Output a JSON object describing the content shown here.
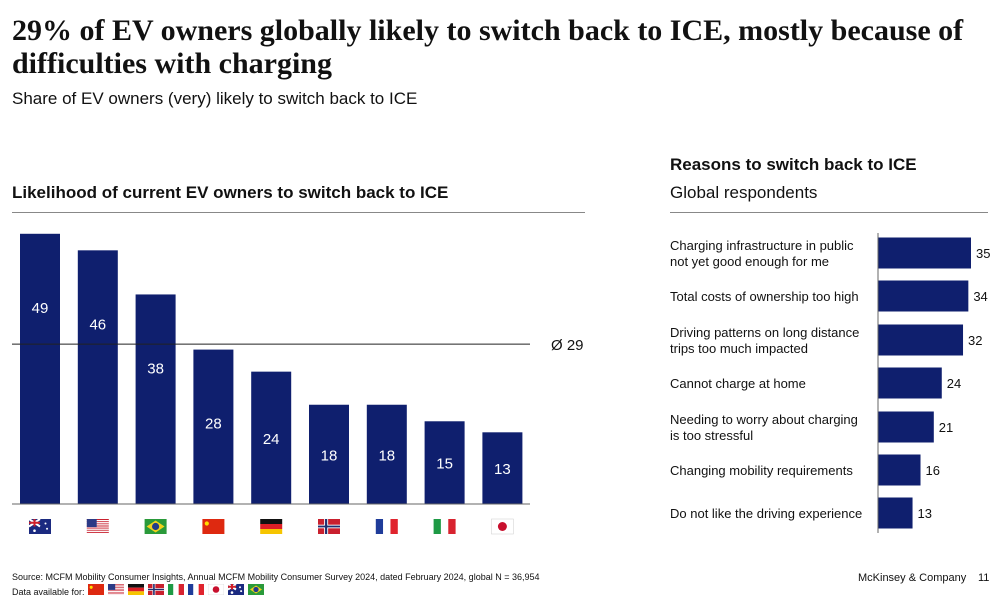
{
  "header": {
    "title": "29% of EV owners globally likely to switch back to ICE, mostly because of difficulties with charging",
    "subtitle": "Share of EV owners (very) likely to switch back to ICE"
  },
  "chart_data": [
    {
      "type": "bar",
      "title": "Likelihood of current EV owners to switch back to ICE",
      "categories": [
        "Australia",
        "USA",
        "Brazil",
        "China",
        "Germany",
        "Norway",
        "France",
        "Italy",
        "Japan"
      ],
      "category_icons": [
        "flag-australia",
        "flag-usa",
        "flag-brazil",
        "flag-china",
        "flag-germany",
        "flag-norway",
        "flag-france",
        "flag-italy",
        "flag-japan"
      ],
      "values": [
        49,
        46,
        38,
        28,
        24,
        18,
        18,
        15,
        13
      ],
      "average": 29,
      "average_label": "Ø 29",
      "ylim": [
        0,
        50
      ],
      "bar_color": "#0f1f6e"
    },
    {
      "type": "bar",
      "orientation": "horizontal",
      "title": "Reasons to switch back to ICE",
      "subtitle": "Global respondents",
      "categories": [
        [
          "Charging infrastructure in public",
          "not yet good enough for me"
        ],
        [
          "Total costs of ownership too high"
        ],
        [
          "Driving patterns on long distance",
          "trips too much impacted"
        ],
        [
          "Cannot charge at home"
        ],
        [
          "Needing to worry about charging",
          "is too stressful"
        ],
        [
          "Changing mobility requirements"
        ],
        [
          "Do not like the driving experience"
        ]
      ],
      "values": [
        35,
        34,
        32,
        24,
        21,
        16,
        13
      ],
      "xlim": [
        0,
        35
      ],
      "bar_color": "#0f1f6e"
    }
  ],
  "footer": {
    "source": "Source: MCFM Mobility Consumer Insights, Annual MCFM Mobility Consumer Survey 2024, dated February 2024, global N = 36,954",
    "data_available": "Data available for:",
    "data_available_icons": [
      "flag-china",
      "flag-usa",
      "flag-germany",
      "flag-norway",
      "flag-italy",
      "flag-france",
      "flag-japan",
      "flag-australia",
      "flag-brazil"
    ],
    "brand": "McKinsey & Company",
    "page": "11"
  }
}
